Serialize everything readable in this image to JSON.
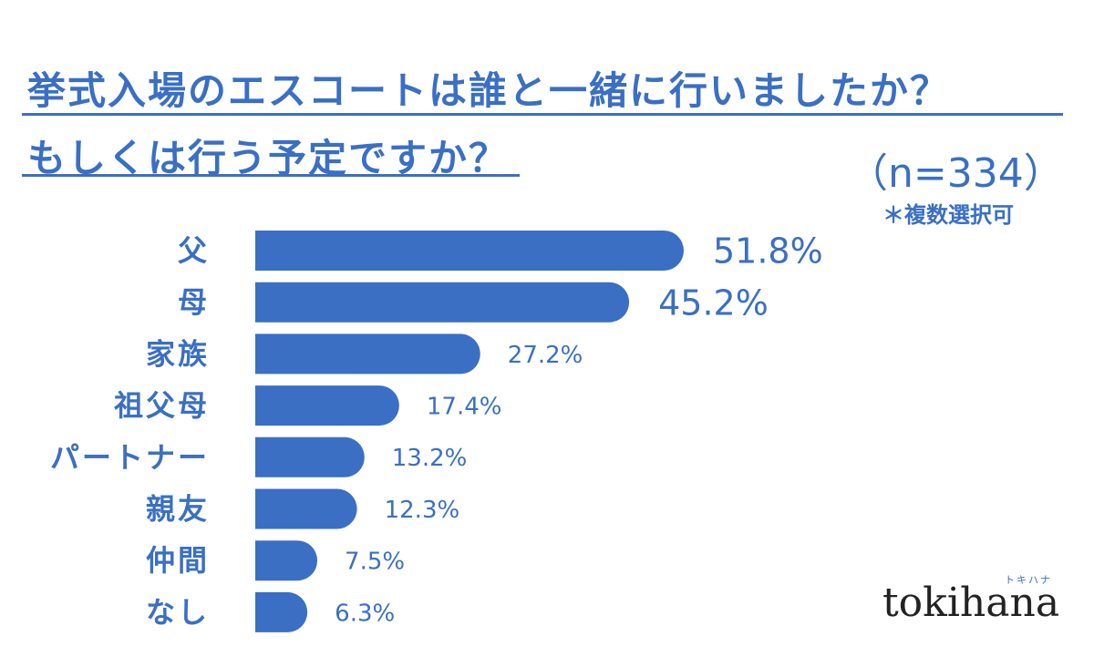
{
  "title": {
    "line1": "挙式入場のエスコートは誰と一緒に行いましたか？",
    "line2": "もしくは行う予定ですか？"
  },
  "sample_size": "（n=334）",
  "note": "＊複数選択可",
  "brand": {
    "logo": "tokihana",
    "kana": "トキハナ"
  },
  "colors": {
    "accent": "#3a6fc4",
    "bar": "#3a6fc4"
  },
  "chart_data": {
    "type": "bar",
    "orientation": "horizontal",
    "categories": [
      "父",
      "母",
      "家族",
      "祖父母",
      "パートナー",
      "親友",
      "仲間",
      "なし"
    ],
    "values": [
      51.8,
      45.2,
      27.2,
      17.4,
      13.2,
      12.3,
      7.5,
      6.3
    ],
    "value_labels": [
      "51.8%",
      "45.2%",
      "27.2%",
      "17.4%",
      "13.2%",
      "12.3%",
      "7.5%",
      "6.3%"
    ],
    "unit": "%",
    "xlim": [
      0,
      60
    ],
    "grid": false,
    "legend": "none"
  }
}
